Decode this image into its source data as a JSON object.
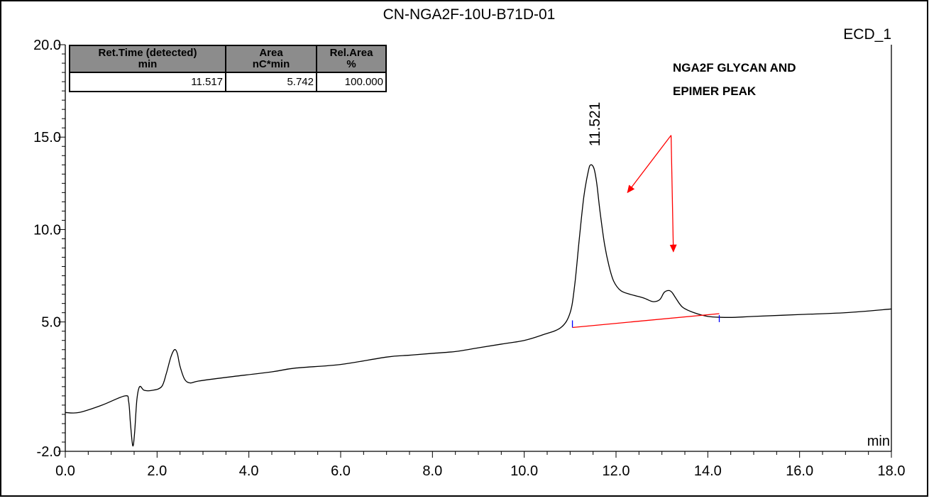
{
  "chart_data": {
    "type": "line",
    "title": "CN-NGA2F-10U-B71D-01",
    "channel": "ECD_1",
    "xlabel": "min",
    "ylabel": "",
    "xlim": [
      0.0,
      18.0
    ],
    "ylim": [
      -2.0,
      20.0
    ],
    "x_ticks": [
      "0.0",
      "2.0",
      "4.0",
      "6.0",
      "8.0",
      "10.0",
      "12.0",
      "14.0",
      "16.0",
      "18.0"
    ],
    "y_ticks": [
      "20.0",
      "15.0",
      "10.0",
      "5.0",
      "-2.0"
    ],
    "series": [
      {
        "x": [
          0.0,
          0.3,
          0.8,
          1.3,
          1.38,
          1.42,
          1.47,
          1.51,
          1.56,
          1.62,
          1.72,
          1.9,
          2.1,
          2.2,
          2.3,
          2.38,
          2.44,
          2.5,
          2.6,
          2.72,
          2.9,
          3.5,
          4.5,
          5.0,
          6.0,
          7.0,
          7.5,
          8.0,
          8.5,
          9.0,
          9.5,
          10.0,
          10.4,
          10.8,
          11.0,
          11.1,
          11.2,
          11.3,
          11.4,
          11.45,
          11.52,
          11.58,
          11.65,
          11.75,
          11.85,
          11.95,
          12.1,
          12.3,
          12.6,
          12.8,
          12.95,
          13.05,
          13.15,
          13.22,
          13.3,
          13.45,
          13.7,
          14.0,
          14.3,
          14.6,
          15.0,
          16.0,
          17.0,
          18.0
        ],
        "y": [
          0.1,
          0.1,
          0.5,
          1.0,
          0.7,
          -0.5,
          -1.7,
          -1.0,
          0.8,
          1.5,
          1.3,
          1.3,
          1.5,
          2.2,
          3.1,
          3.5,
          3.3,
          2.6,
          1.9,
          1.7,
          1.8,
          2.0,
          2.3,
          2.5,
          2.7,
          3.1,
          3.2,
          3.3,
          3.4,
          3.6,
          3.8,
          4.0,
          4.3,
          4.7,
          5.5,
          7.0,
          9.5,
          11.8,
          13.2,
          13.5,
          13.3,
          12.5,
          11.0,
          9.2,
          8.0,
          7.2,
          6.7,
          6.5,
          6.3,
          6.1,
          6.2,
          6.6,
          6.7,
          6.6,
          6.3,
          5.8,
          5.5,
          5.3,
          5.25,
          5.25,
          5.3,
          5.4,
          5.5,
          5.7
        ]
      }
    ],
    "baseline": {
      "x": [
        11.05,
        14.25
      ],
      "y": [
        4.7,
        5.45
      ],
      "color": "#ff0000"
    },
    "integration_markers": {
      "x": [
        11.05,
        14.25
      ],
      "color": "#0000ff"
    },
    "peak_label": {
      "text": "11.521",
      "x": 11.521,
      "y": 13.5
    },
    "annotation": {
      "lines": [
        "NGA2F GLYCAN AND",
        "EPIMER PEAK"
      ],
      "arrow_color": "#ff0000",
      "arrow_targets": [
        {
          "x": 12.25,
          "y": 12.0
        },
        {
          "x": 13.25,
          "y": 8.8
        }
      ]
    },
    "grid": false,
    "legend": "none"
  },
  "results_table": {
    "headers": [
      [
        "Ret.Time (detected)",
        "min"
      ],
      [
        "Area",
        "nC*min"
      ],
      [
        "Rel.Area",
        "%"
      ]
    ],
    "rows": [
      [
        "11.517",
        "5.742",
        "100.000"
      ]
    ]
  },
  "colors": {
    "trace": "#000000",
    "baseline": "#ff0000",
    "markers": "#0000ff",
    "header_fill": "#8c8c8c"
  }
}
